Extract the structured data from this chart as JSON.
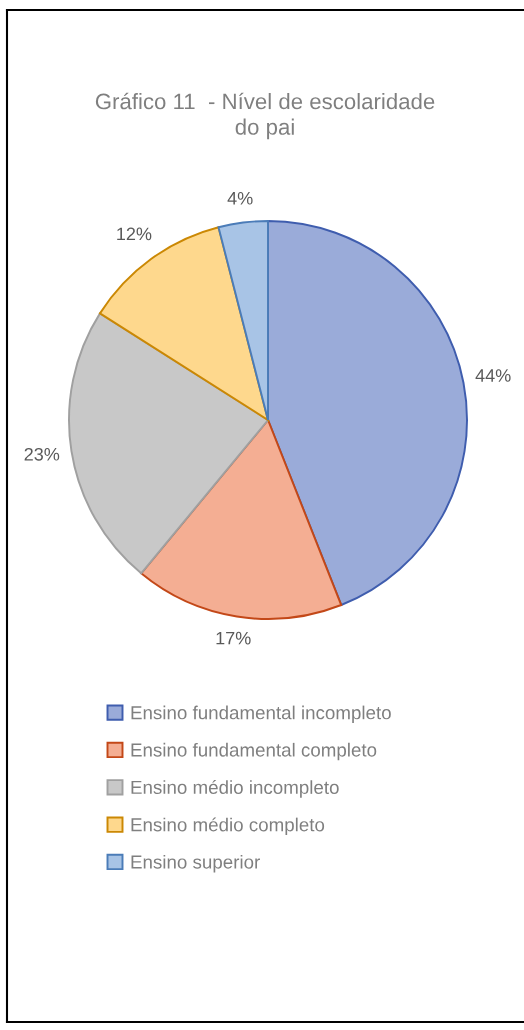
{
  "chart_data": {
    "type": "pie",
    "title": "Gráfico 11  - Nível de escolaridade do pai",
    "categories": [
      "Ensino fundamental incompleto",
      "Ensino fundamental completo",
      "Ensino médio incompleto",
      "Ensino médio completo",
      "Ensino superior"
    ],
    "values": [
      44,
      17,
      23,
      12,
      4
    ],
    "colors": [
      "#9aabd9",
      "#f4ae93",
      "#c8c8c8",
      "#fed88d",
      "#a8c4e6"
    ],
    "value_labels": [
      "44%",
      "17%",
      "23%",
      "12%",
      "4%"
    ],
    "legend": "bottom"
  }
}
